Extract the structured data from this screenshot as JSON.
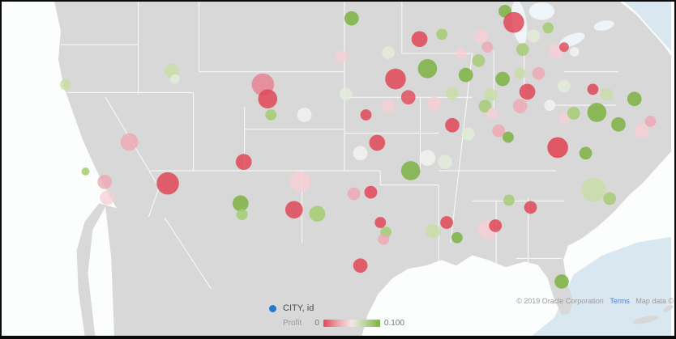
{
  "legend": {
    "layer_label": "CITY, id",
    "layer_dot_color": "#2679CC",
    "metric_label": "Profit",
    "scale_min": "0",
    "scale_max": "0.100",
    "gradient_stops": [
      "#E04858",
      "#EDA2AC",
      "#F1E9E5",
      "#B7D492",
      "#7CB342"
    ]
  },
  "attribution": {
    "copyright": "© 2019 Oracle Corporation",
    "terms": "Terms",
    "terms_color": "#4A83D4",
    "map_data": "Map data ©"
  },
  "map_colors": {
    "ocean": "#FCFDFD",
    "coastal_water": "#D9E8F0",
    "land": "#D8D8D8",
    "state_line": "#FFFFFF"
  },
  "chart_data": {
    "type": "scatter",
    "subtype": "geo_bubble_map",
    "title": "",
    "location_layer": "CITY, id",
    "color_metric": "Profit",
    "color_scale": {
      "min": 0,
      "max": 0.1,
      "min_color": "#E04858",
      "max_color": "#7CB342"
    },
    "legend_position": "bottom-center",
    "palette": {
      "red": "#E04858",
      "redSoft": "#E8808F",
      "pink": "#EFA8B4",
      "pinkPale": "#F6D0D6",
      "green": "#7CB342",
      "greenSoft": "#A4CC72",
      "greenPale": "#C8DFA4",
      "mint": "#E4EDDA",
      "white": "#F2F2EF"
    },
    "points_format": [
      "x_px",
      "y_px",
      "radius_px",
      "color_key",
      "opacity"
    ],
    "points": [
      [
        76,
        104,
        7,
        "greenPale",
        0.8
      ],
      [
        209,
        87,
        9,
        "greenPale",
        0.8
      ],
      [
        213,
        97,
        6,
        "mint",
        0.8
      ],
      [
        323,
        104,
        14,
        "redSoft",
        0.8
      ],
      [
        329,
        122,
        12,
        "red",
        0.85
      ],
      [
        333,
        142,
        7,
        "greenSoft",
        0.85
      ],
      [
        375,
        142,
        9,
        "white",
        0.9
      ],
      [
        421,
        69,
        8,
        "pinkPale",
        0.85
      ],
      [
        434,
        21,
        9,
        "green",
        0.85
      ],
      [
        480,
        64,
        8,
        "mint",
        0.8
      ],
      [
        489,
        97,
        13,
        "red",
        0.85
      ],
      [
        519,
        47,
        10,
        "red",
        0.85
      ],
      [
        547,
        41,
        7,
        "greenSoft",
        0.85
      ],
      [
        529,
        84,
        12,
        "green",
        0.85
      ],
      [
        577,
        92,
        9,
        "green",
        0.85
      ],
      [
        571,
        65,
        7,
        "pinkPale",
        0.8
      ],
      [
        593,
        74,
        8,
        "greenSoft",
        0.8
      ],
      [
        596,
        44,
        9,
        "pinkPale",
        0.85
      ],
      [
        604,
        57,
        7,
        "pink",
        0.8
      ],
      [
        626,
        12,
        8,
        "green",
        0.85
      ],
      [
        637,
        26,
        13,
        "red",
        0.85
      ],
      [
        648,
        60,
        8,
        "greenSoft",
        0.8
      ],
      [
        662,
        43,
        8,
        "mint",
        0.8
      ],
      [
        680,
        33,
        7,
        "greenSoft",
        0.85
      ],
      [
        690,
        62,
        9,
        "pinkPale",
        0.85
      ],
      [
        700,
        57,
        6,
        "red",
        0.8
      ],
      [
        713,
        63,
        6,
        "white",
        0.9
      ],
      [
        645,
        90,
        7,
        "greenPale",
        0.8
      ],
      [
        668,
        90,
        8,
        "pink",
        0.8
      ],
      [
        623,
        97,
        9,
        "green",
        0.85
      ],
      [
        608,
        117,
        8,
        "greenPale",
        0.8
      ],
      [
        654,
        113,
        10,
        "red",
        0.85
      ],
      [
        645,
        131,
        9,
        "pink",
        0.8
      ],
      [
        601,
        131,
        8,
        "greenSoft",
        0.8
      ],
      [
        611,
        140,
        7,
        "pinkPale",
        0.8
      ],
      [
        537,
        128,
        9,
        "pinkPale",
        0.8
      ],
      [
        560,
        115,
        8,
        "greenPale",
        0.8
      ],
      [
        505,
        120,
        9,
        "red",
        0.8
      ],
      [
        480,
        131,
        8,
        "pinkPale",
        0.8
      ],
      [
        452,
        142,
        7,
        "red",
        0.85
      ],
      [
        427,
        116,
        8,
        "mint",
        0.8
      ],
      [
        466,
        177,
        10,
        "red",
        0.85
      ],
      [
        445,
        190,
        9,
        "white",
        0.9
      ],
      [
        529,
        196,
        10,
        "white",
        0.9
      ],
      [
        551,
        201,
        9,
        "mint",
        0.8
      ],
      [
        560,
        155,
        9,
        "red",
        0.85
      ],
      [
        580,
        166,
        8,
        "mint",
        0.8
      ],
      [
        618,
        162,
        8,
        "pink",
        0.8
      ],
      [
        630,
        170,
        7,
        "green",
        0.85
      ],
      [
        682,
        130,
        7,
        "white",
        0.9
      ],
      [
        700,
        146,
        7,
        "pinkPale",
        0.8
      ],
      [
        712,
        140,
        8,
        "greenSoft",
        0.8
      ],
      [
        700,
        106,
        8,
        "mint",
        0.8
      ],
      [
        736,
        110,
        7,
        "red",
        0.85
      ],
      [
        753,
        116,
        8,
        "greenPale",
        0.8
      ],
      [
        788,
        122,
        9,
        "green",
        0.85
      ],
      [
        741,
        139,
        12,
        "green",
        0.85
      ],
      [
        768,
        154,
        9,
        "green",
        0.85
      ],
      [
        797,
        162,
        9,
        "pinkPale",
        0.85
      ],
      [
        808,
        150,
        7,
        "pink",
        0.8
      ],
      [
        727,
        190,
        8,
        "green",
        0.85
      ],
      [
        692,
        183,
        13,
        "red",
        0.9
      ],
      [
        737,
        236,
        15,
        "greenPale",
        0.8
      ],
      [
        757,
        247,
        8,
        "greenSoft",
        0.8
      ],
      [
        156,
        176,
        11,
        "pink",
        0.8
      ],
      [
        101,
        213,
        5,
        "greenSoft",
        0.85
      ],
      [
        125,
        226,
        9,
        "pink",
        0.8
      ],
      [
        128,
        246,
        9,
        "pinkPale",
        0.8
      ],
      [
        204,
        228,
        14,
        "red",
        0.85
      ],
      [
        299,
        201,
        10,
        "red",
        0.85
      ],
      [
        370,
        226,
        13,
        "pinkPale",
        0.85
      ],
      [
        362,
        261,
        11,
        "red",
        0.85
      ],
      [
        391,
        266,
        10,
        "greenSoft",
        0.85
      ],
      [
        295,
        253,
        10,
        "green",
        0.85
      ],
      [
        297,
        267,
        7,
        "greenSoft",
        0.85
      ],
      [
        508,
        212,
        12,
        "green",
        0.85
      ],
      [
        437,
        241,
        8,
        "pink",
        0.8
      ],
      [
        458,
        239,
        8,
        "red",
        0.85
      ],
      [
        470,
        277,
        7,
        "red",
        0.85
      ],
      [
        477,
        289,
        7,
        "greenSoft",
        0.85
      ],
      [
        474,
        298,
        7,
        "pink",
        0.8
      ],
      [
        445,
        331,
        9,
        "red",
        0.85
      ],
      [
        536,
        288,
        9,
        "greenPale",
        0.8
      ],
      [
        566,
        296,
        7,
        "green",
        0.85
      ],
      [
        553,
        277,
        8,
        "red",
        0.85
      ],
      [
        604,
        286,
        12,
        "pinkPale",
        0.85
      ],
      [
        614,
        281,
        8,
        "red",
        0.85
      ],
      [
        631,
        249,
        7,
        "greenSoft",
        0.85
      ],
      [
        658,
        258,
        8,
        "red",
        0.85
      ],
      [
        697,
        351,
        9,
        "green",
        0.85
      ]
    ]
  }
}
